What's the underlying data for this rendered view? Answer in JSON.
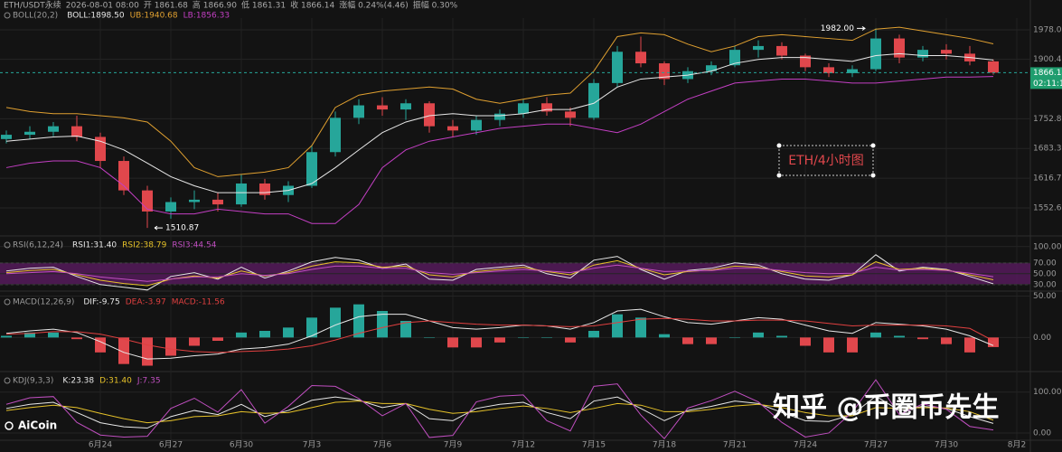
{
  "chart_data": [
    {
      "type": "candlestick",
      "info": [
        "ETH/USDT永续",
        "2026-08-01 08:00",
        "开 1861.68",
        "高 1866.90",
        "低 1861.31",
        "收 1866.14",
        "涨幅 0.24%(4.46)",
        "振幅 0.30%"
      ],
      "title": "BOLL(20,2)",
      "log": true,
      "ylim": [
        1500,
        2010
      ],
      "yticks": [
        {
          "value": 1978,
          "label": "1978.00"
        },
        {
          "value": 1900.41,
          "label": "1900.41"
        },
        {
          "value": 1752.83,
          "label": "1752.83"
        },
        {
          "value": 1683.39,
          "label": "1683.39"
        },
        {
          "value": 1616.7,
          "label": "1616.70"
        },
        {
          "value": 1552.66,
          "label": "1552.66"
        }
      ],
      "last_price": 1866.14,
      "countdown": "02:11:13",
      "up_color": "#26a69a",
      "down_color": "#e0474c",
      "categories": [
        null,
        null,
        null,
        null,
        "6月24",
        null,
        null,
        "6月27",
        null,
        null,
        "6月30",
        null,
        null,
        "7月3",
        null,
        null,
        "7月6",
        null,
        null,
        "7月9",
        null,
        null,
        "7月12",
        null,
        null,
        "7月15",
        null,
        null,
        "7月18",
        null,
        null,
        "7月21",
        null,
        null,
        "7月24",
        null,
        null,
        "7月27",
        null,
        null,
        "7月30",
        null,
        null,
        "8月2"
      ],
      "open": [
        1705,
        1715,
        1722,
        1735,
        1710,
        1655,
        1590,
        1545,
        1565,
        1570,
        1560,
        1605,
        1580,
        1600,
        1675,
        1755,
        1785,
        1775,
        1790,
        1735,
        1725,
        1750,
        1765,
        1790,
        1770,
        1755,
        1840,
        1920,
        1890,
        1850,
        1870,
        1885,
        1925,
        1935,
        1910,
        1880,
        1865,
        1875,
        1955,
        1905,
        1925,
        1915,
        1895,
        null
      ],
      "high": [
        1725,
        1735,
        1745,
        1760,
        1720,
        1665,
        1600,
        1575,
        1590,
        1585,
        1625,
        1615,
        1610,
        1690,
        1770,
        1800,
        1805,
        1800,
        1795,
        1750,
        1760,
        1775,
        1800,
        1805,
        1780,
        1850,
        1935,
        1960,
        1895,
        1880,
        1895,
        1935,
        1950,
        1945,
        1915,
        1890,
        1885,
        1982,
        1965,
        1935,
        1940,
        1935,
        1900,
        null
      ],
      "low": [
        1695,
        1705,
        1712,
        1700,
        1640,
        1580,
        1510.87,
        1530,
        1550,
        1545,
        1555,
        1570,
        1565,
        1595,
        1665,
        1740,
        1760,
        1750,
        1720,
        1710,
        1715,
        1735,
        1755,
        1760,
        1735,
        1750,
        1830,
        1880,
        1835,
        1840,
        1860,
        1880,
        1905,
        1900,
        1870,
        1855,
        1855,
        1870,
        1890,
        1895,
        1900,
        1885,
        1861,
        null
      ],
      "close": [
        1715,
        1722,
        1735,
        1710,
        1655,
        1590,
        1545,
        1565,
        1570,
        1560,
        1605,
        1580,
        1600,
        1675,
        1755,
        1785,
        1775,
        1790,
        1735,
        1725,
        1750,
        1765,
        1790,
        1770,
        1755,
        1840,
        1920,
        1890,
        1850,
        1870,
        1885,
        1925,
        1935,
        1910,
        1880,
        1865,
        1875,
        1955,
        1905,
        1925,
        1915,
        1895,
        1866.14,
        null
      ],
      "extremes": {
        "high": {
          "value": 1982,
          "label": "1982.00"
        },
        "low": {
          "value": 1510.87,
          "label": "1510.87"
        }
      },
      "series": [
        {
          "name": "BOLL",
          "last_label": "BOLL:1898.50",
          "color": "#e8e8e8",
          "values": [
            1700,
            1705,
            1710,
            1712,
            1700,
            1680,
            1650,
            1620,
            1600,
            1585,
            1585,
            1585,
            1590,
            1605,
            1640,
            1680,
            1720,
            1745,
            1760,
            1765,
            1760,
            1760,
            1765,
            1775,
            1775,
            1790,
            1830,
            1850,
            1855,
            1860,
            1870,
            1890,
            1900,
            1905,
            1905,
            1900,
            1895,
            1910,
            1915,
            1910,
            1910,
            1905,
            1898.5,
            null
          ]
        },
        {
          "name": "UB",
          "last_label": "UB:1940.68",
          "color": "#e0a030",
          "values": [
            1780,
            1770,
            1765,
            1765,
            1760,
            1755,
            1745,
            1700,
            1640,
            1620,
            1625,
            1630,
            1640,
            1690,
            1780,
            1810,
            1820,
            1825,
            1830,
            1825,
            1800,
            1790,
            1800,
            1810,
            1815,
            1870,
            1960,
            1970,
            1965,
            1940,
            1920,
            1935,
            1960,
            1965,
            1960,
            1955,
            1950,
            1980,
            1985,
            1975,
            1965,
            1955,
            1940.68,
            null
          ]
        },
        {
          "name": "LB",
          "last_label": "LB:1856.33",
          "color": "#c43fc4",
          "values": [
            1640,
            1650,
            1655,
            1655,
            1640,
            1600,
            1550,
            1540,
            1540,
            1550,
            1545,
            1540,
            1540,
            1520,
            1520,
            1560,
            1640,
            1680,
            1700,
            1710,
            1720,
            1730,
            1735,
            1740,
            1740,
            1730,
            1720,
            1740,
            1770,
            1800,
            1820,
            1840,
            1845,
            1850,
            1850,
            1845,
            1840,
            1840,
            1845,
            1850,
            1855,
            1855,
            1856.33,
            null
          ]
        }
      ]
    },
    {
      "type": "line",
      "title": "RSI(6,12,24)",
      "ylim": [
        18,
        118
      ],
      "yticks": [
        {
          "value": 100,
          "label": "100.00"
        },
        {
          "value": 70,
          "label": "70.00"
        },
        {
          "value": 50,
          "label": "50.00"
        },
        {
          "value": 30,
          "label": "30.00"
        }
      ],
      "band": {
        "range": [
          30,
          70
        ],
        "color": "#5a1c60"
      },
      "series": [
        {
          "name": "RSI1",
          "last_label": "RSI1:31.40",
          "color": "#e8e8e8",
          "values": [
            55,
            60,
            62,
            45,
            30,
            25,
            20,
            45,
            52,
            40,
            62,
            42,
            55,
            72,
            80,
            75,
            60,
            68,
            40,
            38,
            58,
            62,
            66,
            50,
            42,
            75,
            82,
            58,
            40,
            56,
            60,
            70,
            66,
            50,
            40,
            38,
            48,
            85,
            55,
            62,
            58,
            45,
            31.4,
            null
          ]
        },
        {
          "name": "RSI2",
          "last_label": "RSI2:38.79",
          "color": "#e6c229",
          "values": [
            52,
            56,
            58,
            48,
            38,
            32,
            28,
            40,
            46,
            42,
            55,
            46,
            52,
            64,
            72,
            70,
            62,
            64,
            48,
            44,
            54,
            58,
            62,
            54,
            48,
            66,
            74,
            60,
            48,
            54,
            57,
            64,
            62,
            54,
            46,
            44,
            48,
            72,
            58,
            60,
            57,
            48,
            38.79,
            null
          ]
        },
        {
          "name": "RSI3",
          "last_label": "RSI3:44.54",
          "color": "#c04fc0",
          "values": [
            50,
            52,
            54,
            50,
            44,
            40,
            36,
            40,
            44,
            44,
            50,
            47,
            50,
            58,
            64,
            64,
            60,
            60,
            52,
            49,
            52,
            55,
            58,
            55,
            52,
            60,
            66,
            60,
            54,
            55,
            56,
            60,
            60,
            56,
            52,
            50,
            51,
            62,
            57,
            58,
            56,
            51,
            44.54,
            null
          ]
        }
      ]
    },
    {
      "type": "macd",
      "title": "MACD(12,26,9)",
      "ylim": [
        -40,
        56
      ],
      "yticks": [
        {
          "value": 50,
          "label": "50.00"
        },
        {
          "value": 0,
          "label": "0.00"
        }
      ],
      "up_color": "#26a69a",
      "down_color": "#e0474c",
      "series": [
        {
          "name": "DIF",
          "last_label": "DIF:-9.75",
          "color": "#e8e8e8",
          "values": [
            5,
            8,
            10,
            6,
            -5,
            -18,
            -26,
            -25,
            -22,
            -20,
            -14,
            -12,
            -8,
            2,
            15,
            25,
            28,
            28,
            20,
            12,
            10,
            12,
            15,
            14,
            10,
            18,
            32,
            34,
            25,
            18,
            16,
            20,
            24,
            22,
            15,
            8,
            5,
            18,
            16,
            14,
            10,
            2,
            -9.75,
            null
          ]
        },
        {
          "name": "DEA",
          "last_label": "DEA:-3.97",
          "color": "#e04040",
          "values": [
            4,
            5,
            7,
            7,
            4,
            -2,
            -9,
            -14,
            -17,
            -18,
            -17,
            -16,
            -14,
            -10,
            -3,
            5,
            12,
            18,
            20,
            18,
            16,
            15,
            15,
            14,
            13,
            14,
            18,
            22,
            23,
            22,
            20,
            20,
            21,
            21,
            20,
            17,
            14,
            15,
            15,
            15,
            14,
            11,
            -3.97,
            null
          ]
        },
        {
          "name": "MACD",
          "last_label": "MACD:-11.56",
          "color": "#e04040",
          "bars": true,
          "values": [
            2,
            6,
            6,
            -2,
            -18,
            -32,
            -34,
            -22,
            -10,
            -4,
            6,
            8,
            12,
            24,
            36,
            40,
            32,
            20,
            0,
            -12,
            -12,
            -6,
            0,
            0,
            -6,
            8,
            28,
            24,
            4,
            -8,
            -8,
            0,
            6,
            2,
            -10,
            -18,
            -18,
            6,
            2,
            -2,
            -8,
            -18,
            -11.56,
            null
          ]
        }
      ]
    },
    {
      "type": "line",
      "title": "KDJ(9,3,3)",
      "ylim": [
        -20,
        148
      ],
      "yticks": [
        {
          "value": 100,
          "label": "100.00"
        },
        {
          "value": 0,
          "label": "0.00"
        }
      ],
      "series": [
        {
          "name": "K",
          "last_label": "K:23.38",
          "color": "#e8e8e8",
          "values": [
            60,
            70,
            75,
            50,
            25,
            15,
            12,
            40,
            55,
            45,
            70,
            40,
            55,
            80,
            88,
            80,
            62,
            72,
            35,
            30,
            60,
            70,
            75,
            50,
            35,
            78,
            88,
            60,
            30,
            55,
            65,
            78,
            72,
            50,
            30,
            28,
            45,
            90,
            55,
            65,
            60,
            40,
            23.38,
            null
          ]
        },
        {
          "name": "D",
          "last_label": "D:31.40",
          "color": "#e6c229",
          "values": [
            55,
            62,
            68,
            62,
            48,
            35,
            25,
            30,
            40,
            42,
            52,
            48,
            50,
            62,
            75,
            78,
            72,
            72,
            58,
            48,
            52,
            60,
            66,
            60,
            50,
            60,
            72,
            68,
            52,
            52,
            58,
            66,
            70,
            62,
            50,
            42,
            42,
            62,
            60,
            62,
            61,
            52,
            31.4,
            null
          ]
        },
        {
          "name": "J",
          "last_label": "J:7.35",
          "color": "#c04fc0",
          "values": [
            70,
            86,
            89,
            26,
            -5,
            -10,
            -8,
            60,
            85,
            51,
            106,
            24,
            65,
            116,
            114,
            84,
            42,
            72,
            -11,
            -6,
            76,
            90,
            93,
            30,
            5,
            114,
            120,
            44,
            -14,
            61,
            79,
            102,
            76,
            26,
            -10,
            0,
            51,
            130,
            45,
            71,
            58,
            16,
            7.35,
            null
          ]
        }
      ]
    }
  ],
  "annotation": "ETH/4小时图",
  "watermark": "知乎 @币圈币先生",
  "logo": "AiCoin"
}
